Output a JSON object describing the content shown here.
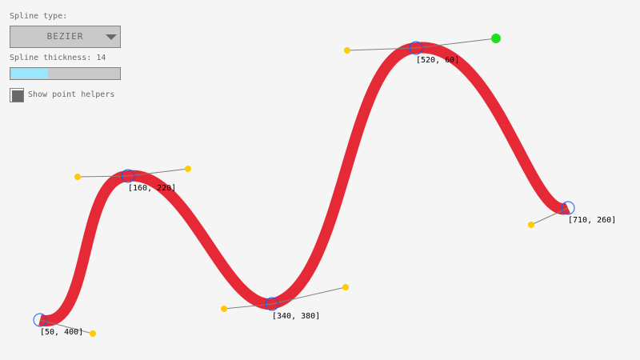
{
  "controls": {
    "spline_type_label": "Spline type:",
    "spline_type_value": "BEZIER",
    "thickness_label": "Spline thickness: 14",
    "thickness_fraction": 0.34,
    "show_helpers_label": "Show point helpers",
    "show_helpers_checked": true
  },
  "points": [
    {
      "label": "[50, 400]"
    },
    {
      "label": "[160, 220]"
    },
    {
      "label": "[340, 380]"
    },
    {
      "label": "[520, 60]"
    },
    {
      "label": "[710, 260]"
    }
  ],
  "colors": {
    "spline": "#e62937",
    "control_point": "#ffcb00",
    "selected_control_point": "#1ee01e",
    "point_circle": "#0064ff",
    "helper_line": "#808080"
  }
}
